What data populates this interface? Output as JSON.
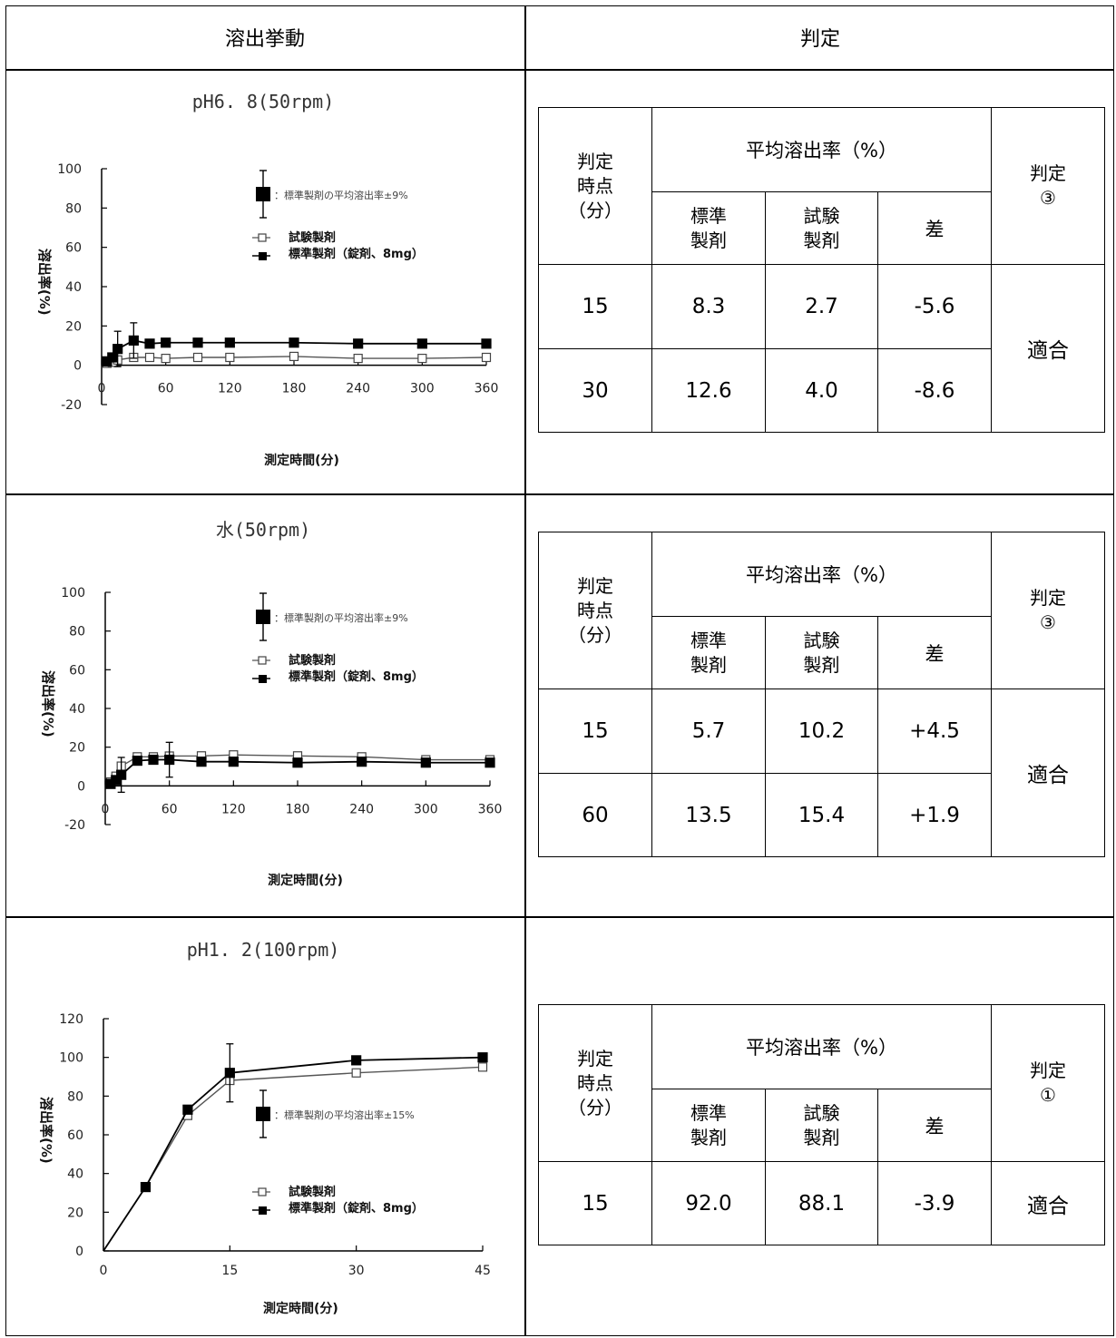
{
  "header": {
    "left": "溶出挙動",
    "right": "判定"
  },
  "table_header": {
    "point": "判定\n時点\n（分）",
    "avg": "平均溶出率（%）",
    "std": "標準\n製剤",
    "test": "試験\n製剤",
    "diff": "差"
  },
  "sections": [
    {
      "chart_title": "pH6. 8(50rpm)",
      "judge_label": "判定\n③",
      "result": "適合",
      "rows": [
        {
          "time": "15",
          "std": "8.3",
          "test": "2.7",
          "diff": "-5.6"
        },
        {
          "time": "30",
          "std": "12.6",
          "test": "4.0",
          "diff": "-8.6"
        }
      ]
    },
    {
      "chart_title": "水(50rpm)",
      "judge_label": "判定\n③",
      "result": "適合",
      "rows": [
        {
          "time": "15",
          "std": "5.7",
          "test": "10.2",
          "diff": "+4.5"
        },
        {
          "time": "60",
          "std": "13.5",
          "test": "15.4",
          "diff": "+1.9"
        }
      ]
    },
    {
      "chart_title": "pH1. 2(100rpm)",
      "judge_label": "判定\n①",
      "result": "適合",
      "rows": [
        {
          "time": "15",
          "std": "92.0",
          "test": "88.1",
          "diff": "-3.9"
        }
      ]
    }
  ],
  "chart_data": [
    {
      "type": "line",
      "title": "pH6. 8(50rpm)",
      "xlabel": "測定時間(分)",
      "ylabel": "溶出率(%)",
      "xlim": [
        0,
        360
      ],
      "ylim": [
        -20,
        100
      ],
      "xticks": [
        "0",
        "60",
        "120",
        "180",
        "240",
        "300",
        "360"
      ],
      "yticks": [
        "-20",
        "0",
        "20",
        "40",
        "60",
        "80",
        "100"
      ],
      "legend_sd": "：標準製剤の平均溶出率±9%",
      "legend_test": "試験製剤",
      "legend_std": "標準製剤（錠剤、8mg）",
      "series": [
        {
          "name": "試験製剤",
          "marker": "open-square",
          "x": [
            0,
            5,
            10,
            15,
            30,
            45,
            60,
            90,
            120,
            180,
            240,
            300,
            360
          ],
          "y": [
            0,
            1,
            1.5,
            2.7,
            4.0,
            4.0,
            3.5,
            4.0,
            4.0,
            4.5,
            3.5,
            3.5,
            4.0
          ]
        },
        {
          "name": "標準製剤（錠剤、8mg）",
          "marker": "filled-square",
          "x": [
            0,
            5,
            10,
            15,
            30,
            45,
            60,
            90,
            120,
            180,
            240,
            300,
            360
          ],
          "y": [
            0,
            2,
            4,
            8.3,
            12.6,
            11,
            11.5,
            11.5,
            11.5,
            11.5,
            11,
            11,
            11
          ],
          "error": [
            0,
            0,
            0,
            9,
            9,
            0,
            0,
            0,
            0,
            0,
            0,
            0,
            0
          ]
        }
      ]
    },
    {
      "type": "line",
      "title": "水(50rpm)",
      "xlabel": "測定時間(分)",
      "ylabel": "溶出率(%)",
      "xlim": [
        0,
        360
      ],
      "ylim": [
        -20,
        100
      ],
      "xticks": [
        "0",
        "60",
        "120",
        "180",
        "240",
        "300",
        "360"
      ],
      "yticks": [
        "-20",
        "0",
        "20",
        "40",
        "60",
        "80",
        "100"
      ],
      "legend_sd": "：標準製剤の平均溶出率±9%",
      "legend_test": "試験製剤",
      "legend_std": "標準製剤（錠剤、8mg）",
      "series": [
        {
          "name": "試験製剤",
          "marker": "open-square",
          "x": [
            0,
            5,
            10,
            15,
            30,
            45,
            60,
            90,
            120,
            180,
            240,
            300,
            360
          ],
          "y": [
            0,
            2,
            5,
            10.2,
            15,
            15,
            15.4,
            15.5,
            16,
            15.5,
            15,
            13.5,
            13.5
          ]
        },
        {
          "name": "標準製剤（錠剤、8mg）",
          "marker": "filled-square",
          "x": [
            0,
            5,
            10,
            15,
            30,
            45,
            60,
            90,
            120,
            180,
            240,
            300,
            360
          ],
          "y": [
            0,
            1,
            3,
            5.7,
            13,
            13.5,
            13.5,
            12.5,
            12.5,
            12,
            12.5,
            12,
            12
          ],
          "error": [
            0,
            0,
            0,
            9,
            0,
            0,
            9,
            0,
            0,
            0,
            0,
            0,
            0
          ]
        }
      ]
    },
    {
      "type": "line",
      "title": "pH1. 2(100rpm)",
      "xlabel": "測定時間(分)",
      "ylabel": "溶出率(%)",
      "xlim": [
        0,
        45
      ],
      "ylim": [
        0,
        120
      ],
      "xticks": [
        "0",
        "15",
        "30",
        "45"
      ],
      "yticks": [
        "0",
        "20",
        "40",
        "60",
        "80",
        "100",
        "120"
      ],
      "legend_sd": "：標準製剤の平均溶出率±15%",
      "legend_test": "試験製剤",
      "legend_std": "標準製剤（錠剤、8mg）",
      "series": [
        {
          "name": "試験製剤",
          "marker": "open-square",
          "x": [
            0,
            5,
            10,
            15,
            30,
            45
          ],
          "y": [
            0,
            33,
            70,
            88.1,
            92,
            95
          ]
        },
        {
          "name": "標準製剤（錠剤、8mg）",
          "marker": "filled-square",
          "x": [
            0,
            5,
            10,
            15,
            30,
            45
          ],
          "y": [
            0,
            33,
            73,
            92.0,
            98.5,
            100
          ],
          "error": [
            0,
            0,
            0,
            15,
            0,
            0
          ]
        }
      ]
    }
  ]
}
